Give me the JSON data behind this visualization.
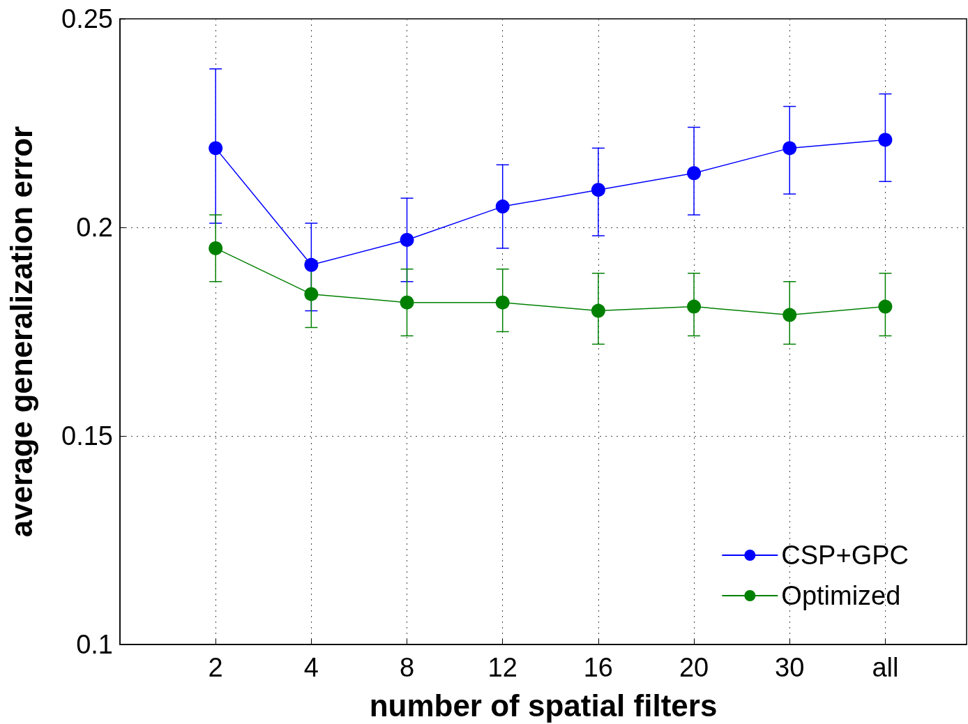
{
  "chart_data": {
    "type": "line",
    "xlabel": "number of spatial filters",
    "ylabel": "average generalization error",
    "categories": [
      "2",
      "4",
      "8",
      "12",
      "16",
      "20",
      "30",
      "all"
    ],
    "series": [
      {
        "name": "CSP+GPC",
        "color": "#0000ff",
        "values": [
          0.219,
          0.191,
          0.197,
          0.205,
          0.209,
          0.213,
          0.219,
          0.221
        ],
        "errors": [
          [
            0.201,
            0.238
          ],
          [
            0.18,
            0.201
          ],
          [
            0.187,
            0.207
          ],
          [
            0.195,
            0.215
          ],
          [
            0.198,
            0.219
          ],
          [
            0.203,
            0.224
          ],
          [
            0.208,
            0.229
          ],
          [
            0.211,
            0.232
          ]
        ]
      },
      {
        "name": "Optimized",
        "color": "#008000",
        "values": [
          0.195,
          0.184,
          0.182,
          0.182,
          0.18,
          0.181,
          0.179,
          0.181
        ],
        "errors": [
          [
            0.187,
            0.203
          ],
          [
            0.176,
            0.192
          ],
          [
            0.174,
            0.19
          ],
          [
            0.175,
            0.19
          ],
          [
            0.172,
            0.189
          ],
          [
            0.174,
            0.189
          ],
          [
            0.172,
            0.187
          ],
          [
            0.174,
            0.189
          ]
        ]
      }
    ],
    "ylim": [
      0.1,
      0.25
    ],
    "yticks": [
      0.1,
      0.15,
      0.2,
      0.25
    ],
    "grid": true,
    "legend": "bottom right",
    "marker": "circle",
    "line_style": "solid"
  }
}
